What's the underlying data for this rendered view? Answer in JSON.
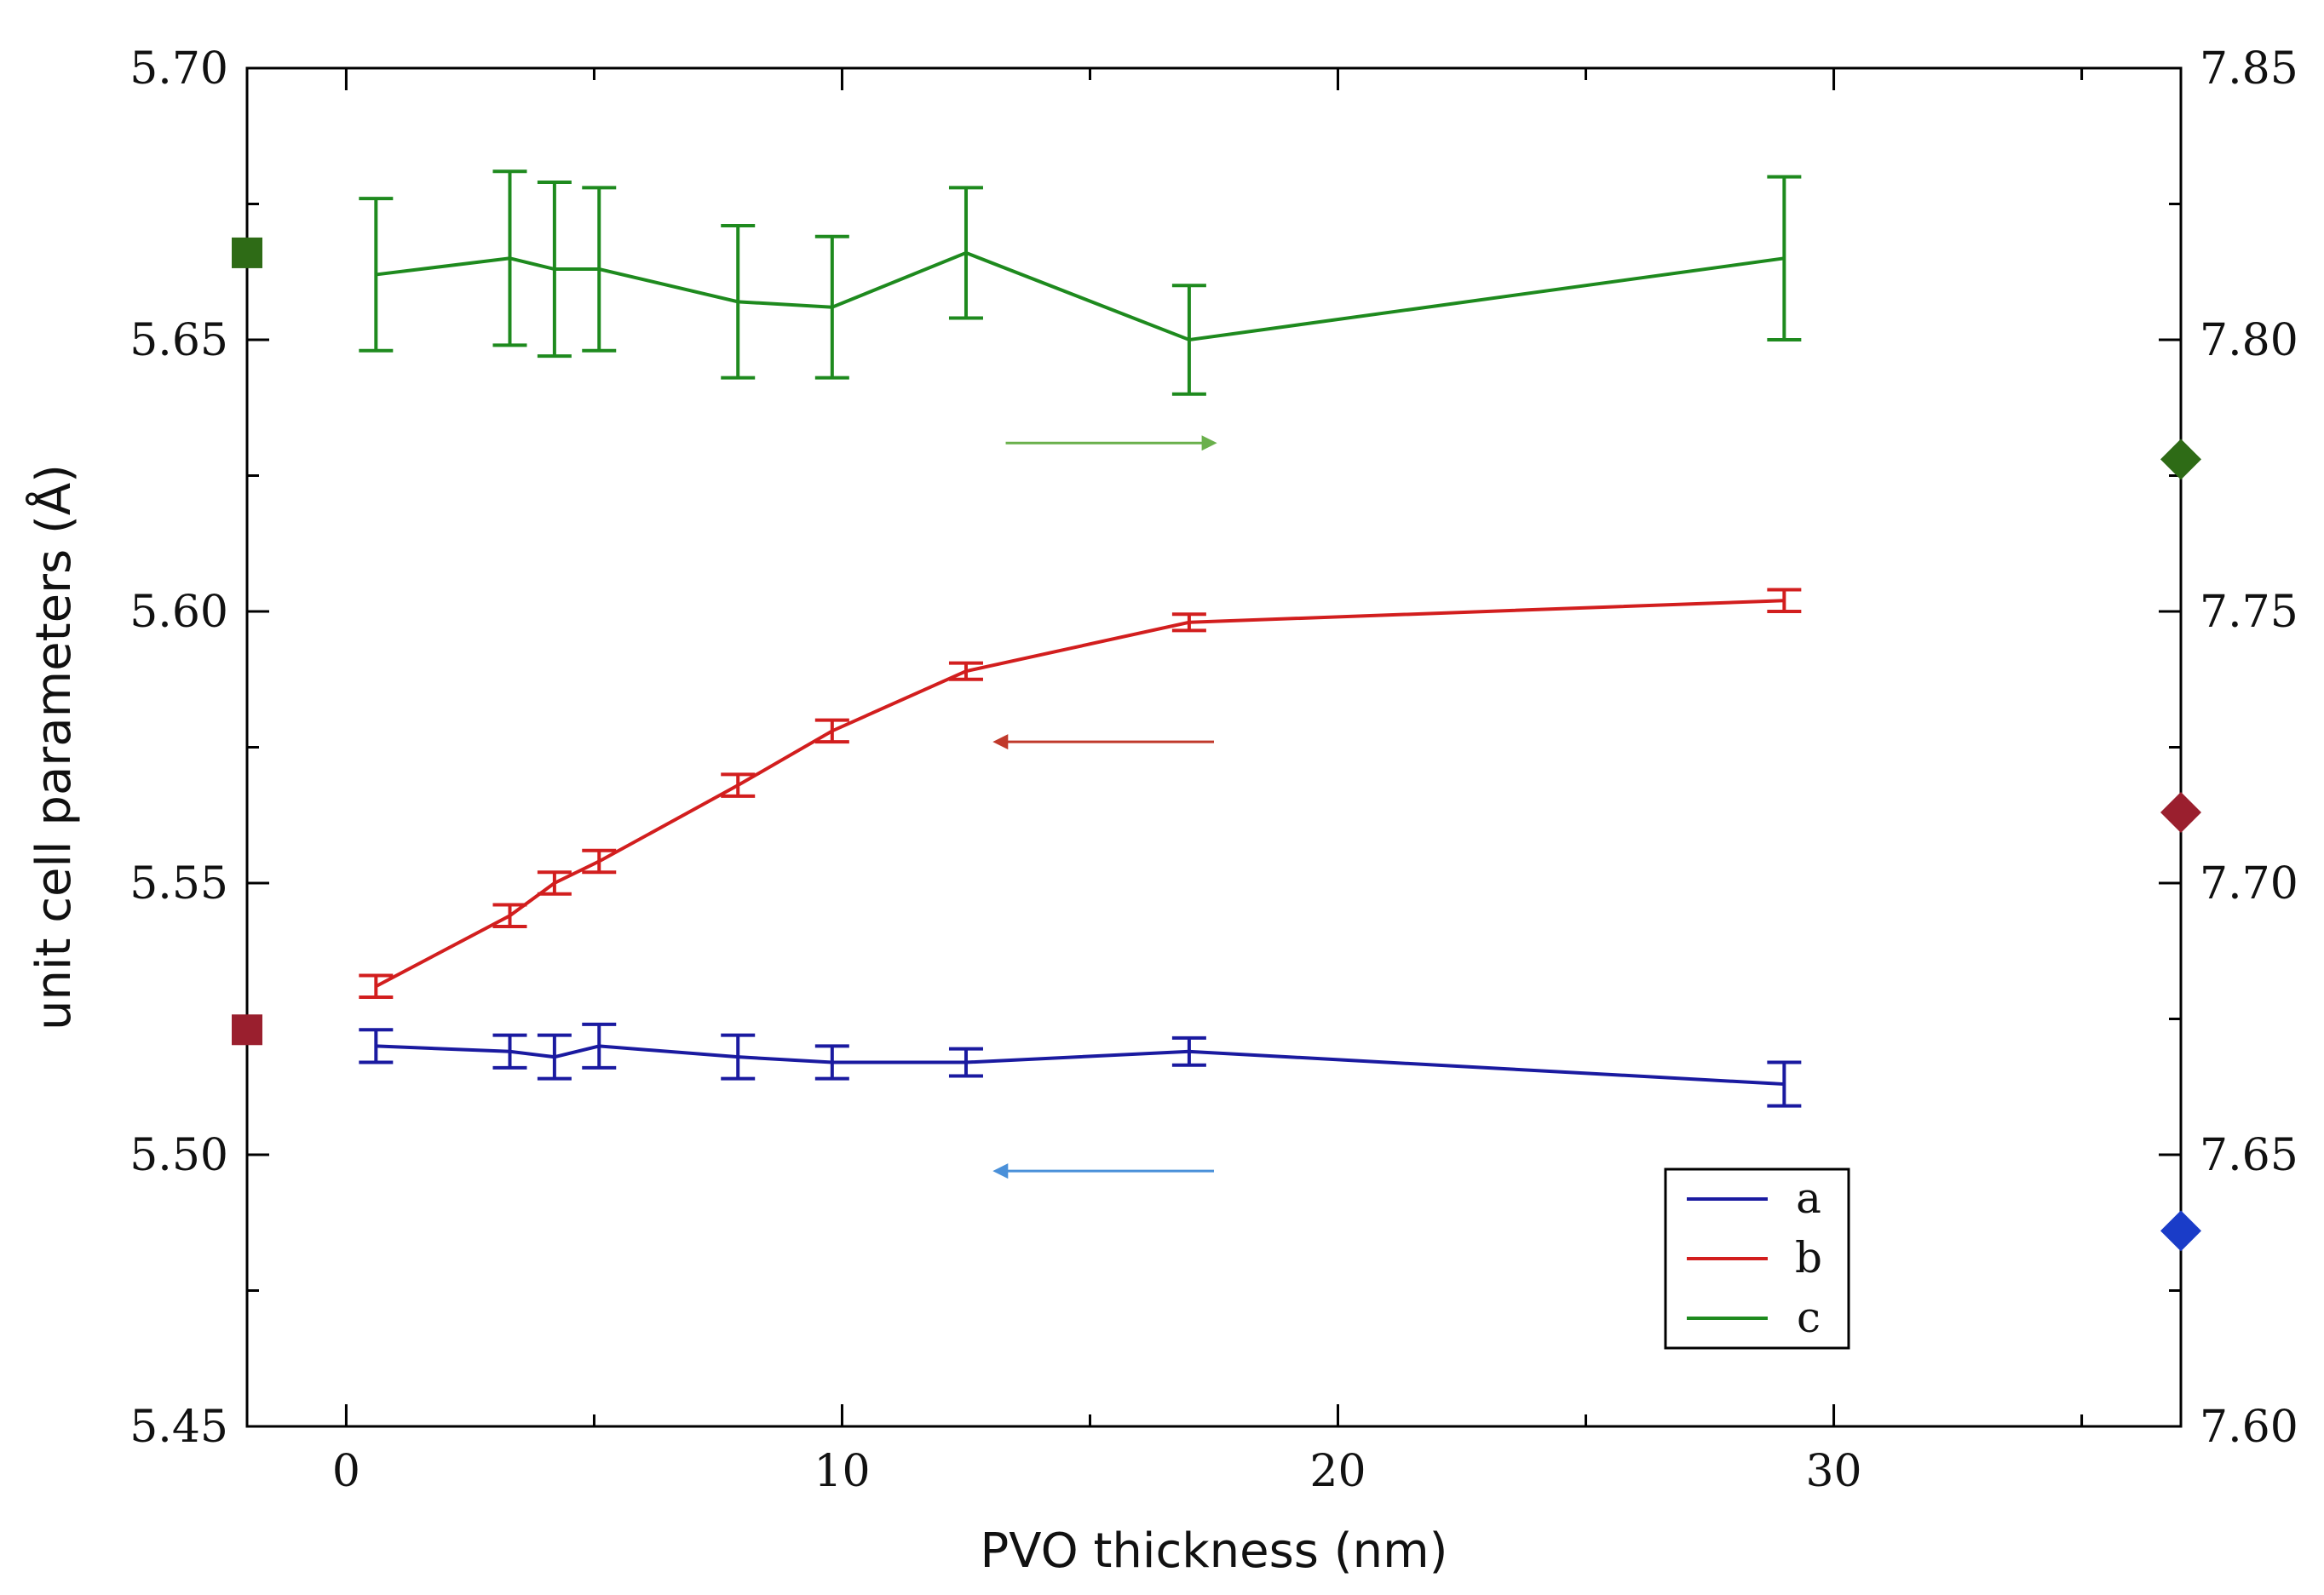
{
  "chart_data": {
    "type": "line",
    "title": "",
    "xlabel": "PVO thickness (nm)",
    "ylabel": "unit cell parameters (Å)",
    "xlim": [
      -2,
      37
    ],
    "ylim": [
      5.45,
      5.7
    ],
    "y2lim": [
      7.6,
      7.85
    ],
    "x_ticks": [
      "0",
      "10",
      "20",
      "30"
    ],
    "x_tick_values": [
      0,
      10,
      20,
      30
    ],
    "y_ticks": [
      "5.45",
      "5.50",
      "5.55",
      "5.60",
      "5.65",
      "5.70"
    ],
    "y_tick_values": [
      5.45,
      5.5,
      5.55,
      5.6,
      5.65,
      5.7
    ],
    "y2_ticks": [
      "7.60",
      "7.65",
      "7.70",
      "7.75",
      "7.80",
      "7.85"
    ],
    "y2_tick_values": [
      7.6,
      7.65,
      7.7,
      7.75,
      7.8,
      7.85
    ],
    "x": [
      0.6,
      3.3,
      4.2,
      5.1,
      7.9,
      9.8,
      12.5,
      17.0,
      29.0
    ],
    "legend_position": "bottom-right",
    "series": [
      {
        "name": "a",
        "color": "#1a1aa0",
        "axis": "left",
        "values": [
          5.52,
          5.519,
          5.518,
          5.52,
          5.518,
          5.517,
          5.517,
          5.519,
          5.513
        ],
        "errors": [
          0.003,
          0.003,
          0.004,
          0.004,
          0.004,
          0.003,
          0.0025,
          0.0025,
          0.004
        ]
      },
      {
        "name": "b",
        "color": "#d21e1e",
        "axis": "left",
        "values": [
          5.531,
          5.544,
          5.55,
          5.554,
          5.568,
          5.578,
          5.589,
          5.598,
          5.602
        ],
        "errors": [
          0.002,
          0.002,
          0.002,
          0.002,
          0.002,
          0.002,
          0.0015,
          0.0015,
          0.002
        ]
      },
      {
        "name": "c",
        "color": "#1e8a1e",
        "axis": "right",
        "values": [
          7.812,
          7.815,
          7.813,
          7.813,
          7.807,
          7.806,
          7.816,
          7.8,
          7.815
        ],
        "errors": [
          0.014,
          0.016,
          0.016,
          0.015,
          0.014,
          0.013,
          0.012,
          0.01,
          0.015
        ]
      }
    ],
    "reference_markers": [
      {
        "name": "c-ref-square",
        "shape": "square",
        "axis": "left",
        "x": -2,
        "y": 5.666,
        "color": "#2e6b16"
      },
      {
        "name": "b-ref-square",
        "shape": "square",
        "axis": "left",
        "x": -2,
        "y": 5.523,
        "color": "#9a1f2e"
      },
      {
        "name": "c-ref-diamond",
        "shape": "diamond",
        "axis": "right",
        "x": 37,
        "y": 7.778,
        "color": "#2e6b16"
      },
      {
        "name": "b-ref-diamond",
        "shape": "diamond",
        "axis": "right",
        "x": 37,
        "y": 7.713,
        "color": "#9a1f2e"
      },
      {
        "name": "a-ref-diamond",
        "shape": "diamond",
        "axis": "right",
        "x": 37,
        "y": 7.636,
        "color": "#1a3cc8"
      }
    ],
    "annotations": [
      {
        "name": "arrow-green-right",
        "direction": "right",
        "x_from": 13.3,
        "x_to": 17.5,
        "y": 5.631,
        "color": "#6ab04c"
      },
      {
        "name": "arrow-red-left",
        "direction": "left",
        "x_from": 17.5,
        "x_to": 13.1,
        "y": 5.576,
        "color": "#c0392b"
      },
      {
        "name": "arrow-blue-left",
        "direction": "left",
        "x_from": 17.5,
        "x_to": 13.1,
        "y": 5.497,
        "color": "#4a90d9"
      }
    ]
  }
}
